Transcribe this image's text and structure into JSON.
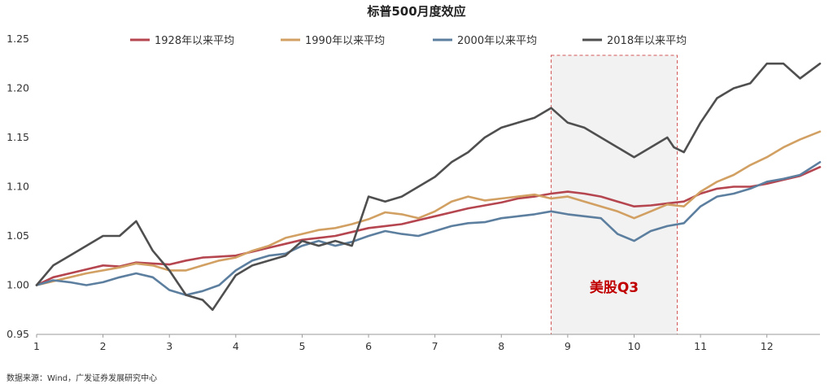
{
  "source_note": "数据来源：Wind，广发证券发展研究中心",
  "chart_data": {
    "type": "line",
    "title": "标普500月度效应",
    "xlabel": "",
    "ylabel": "",
    "xlim": [
      1,
      12.8
    ],
    "ylim": [
      0.95,
      1.25
    ],
    "x_ticks": [
      "1",
      "2",
      "3",
      "4",
      "5",
      "6",
      "7",
      "8",
      "9",
      "10",
      "11",
      "12"
    ],
    "y_ticks": [
      "0.95",
      "1.00",
      "1.05",
      "1.10",
      "1.15",
      "1.20",
      "1.25"
    ],
    "grid": false,
    "legend_position": "top",
    "highlight": {
      "x_start": 8.75,
      "x_end": 10.65,
      "label": "美股Q3"
    },
    "series": [
      {
        "name": "1928年以来平均",
        "color": "#b5454f",
        "x": [
          1.0,
          1.25,
          1.5,
          1.75,
          2.0,
          2.25,
          2.5,
          2.75,
          3.0,
          3.25,
          3.5,
          3.75,
          4.0,
          4.25,
          4.5,
          4.75,
          5.0,
          5.25,
          5.5,
          5.75,
          6.0,
          6.25,
          6.5,
          6.75,
          7.0,
          7.25,
          7.5,
          7.75,
          8.0,
          8.25,
          8.5,
          8.75,
          9.0,
          9.25,
          9.5,
          9.75,
          10.0,
          10.25,
          10.5,
          10.75,
          11.0,
          11.25,
          11.5,
          11.75,
          12.0,
          12.25,
          12.5,
          12.8
        ],
        "y": [
          1.0,
          1.008,
          1.012,
          1.016,
          1.02,
          1.019,
          1.023,
          1.022,
          1.021,
          1.025,
          1.028,
          1.029,
          1.03,
          1.034,
          1.038,
          1.042,
          1.046,
          1.048,
          1.05,
          1.054,
          1.058,
          1.06,
          1.062,
          1.066,
          1.07,
          1.074,
          1.078,
          1.081,
          1.084,
          1.088,
          1.09,
          1.093,
          1.095,
          1.093,
          1.09,
          1.085,
          1.08,
          1.081,
          1.083,
          1.085,
          1.093,
          1.098,
          1.1,
          1.1,
          1.103,
          1.107,
          1.111,
          1.12
        ]
      },
      {
        "name": "1990年以来平均",
        "color": "#d1a062",
        "x": [
          1.0,
          1.25,
          1.5,
          1.75,
          2.0,
          2.25,
          2.5,
          2.75,
          3.0,
          3.25,
          3.5,
          3.75,
          4.0,
          4.25,
          4.5,
          4.75,
          5.0,
          5.25,
          5.5,
          5.75,
          6.0,
          6.25,
          6.5,
          6.75,
          7.0,
          7.25,
          7.5,
          7.75,
          8.0,
          8.25,
          8.5,
          8.75,
          9.0,
          9.25,
          9.5,
          9.75,
          10.0,
          10.25,
          10.5,
          10.75,
          11.0,
          11.25,
          11.5,
          11.75,
          12.0,
          12.25,
          12.5,
          12.8
        ],
        "y": [
          1.0,
          1.004,
          1.008,
          1.012,
          1.015,
          1.018,
          1.022,
          1.02,
          1.015,
          1.015,
          1.02,
          1.025,
          1.028,
          1.035,
          1.04,
          1.048,
          1.052,
          1.056,
          1.058,
          1.062,
          1.067,
          1.074,
          1.072,
          1.068,
          1.075,
          1.085,
          1.09,
          1.086,
          1.088,
          1.09,
          1.092,
          1.088,
          1.09,
          1.085,
          1.08,
          1.075,
          1.068,
          1.075,
          1.082,
          1.08,
          1.095,
          1.105,
          1.112,
          1.122,
          1.13,
          1.14,
          1.148,
          1.156
        ]
      },
      {
        "name": "2000年以来平均",
        "color": "#5d7f9f",
        "x": [
          1.0,
          1.25,
          1.5,
          1.75,
          2.0,
          2.25,
          2.5,
          2.75,
          3.0,
          3.25,
          3.5,
          3.75,
          4.0,
          4.25,
          4.5,
          4.75,
          5.0,
          5.25,
          5.5,
          5.75,
          6.0,
          6.25,
          6.5,
          6.75,
          7.0,
          7.25,
          7.5,
          7.75,
          8.0,
          8.25,
          8.5,
          8.75,
          9.0,
          9.25,
          9.5,
          9.75,
          10.0,
          10.25,
          10.5,
          10.75,
          11.0,
          11.25,
          11.5,
          11.75,
          12.0,
          12.25,
          12.5,
          12.8
        ],
        "y": [
          1.0,
          1.005,
          1.003,
          1.0,
          1.003,
          1.008,
          1.012,
          1.008,
          0.995,
          0.99,
          0.994,
          1.0,
          1.015,
          1.025,
          1.03,
          1.032,
          1.04,
          1.045,
          1.04,
          1.044,
          1.05,
          1.055,
          1.052,
          1.05,
          1.055,
          1.06,
          1.063,
          1.064,
          1.068,
          1.07,
          1.072,
          1.075,
          1.072,
          1.07,
          1.068,
          1.052,
          1.045,
          1.055,
          1.06,
          1.063,
          1.08,
          1.09,
          1.093,
          1.098,
          1.105,
          1.108,
          1.112,
          1.125
        ]
      },
      {
        "name": "2018年以来平均",
        "color": "#4f4f4f",
        "x": [
          1.0,
          1.25,
          1.5,
          1.75,
          2.0,
          2.25,
          2.5,
          2.75,
          3.0,
          3.25,
          3.5,
          3.65,
          4.0,
          4.25,
          4.5,
          4.75,
          5.0,
          5.25,
          5.5,
          5.75,
          6.0,
          6.25,
          6.5,
          6.75,
          7.0,
          7.25,
          7.5,
          7.75,
          8.0,
          8.25,
          8.5,
          8.75,
          9.0,
          9.25,
          9.5,
          9.75,
          10.0,
          10.25,
          10.5,
          10.6,
          10.75,
          11.0,
          11.25,
          11.5,
          11.75,
          12.0,
          12.25,
          12.5,
          12.8
        ],
        "y": [
          1.0,
          1.02,
          1.03,
          1.04,
          1.05,
          1.05,
          1.065,
          1.035,
          1.015,
          0.99,
          0.985,
          0.975,
          1.01,
          1.02,
          1.025,
          1.03,
          1.045,
          1.04,
          1.045,
          1.04,
          1.09,
          1.085,
          1.09,
          1.1,
          1.11,
          1.125,
          1.135,
          1.15,
          1.16,
          1.165,
          1.17,
          1.18,
          1.165,
          1.16,
          1.15,
          1.14,
          1.13,
          1.14,
          1.15,
          1.14,
          1.135,
          1.165,
          1.19,
          1.2,
          1.205,
          1.225,
          1.225,
          1.21,
          1.225
        ]
      }
    ]
  }
}
